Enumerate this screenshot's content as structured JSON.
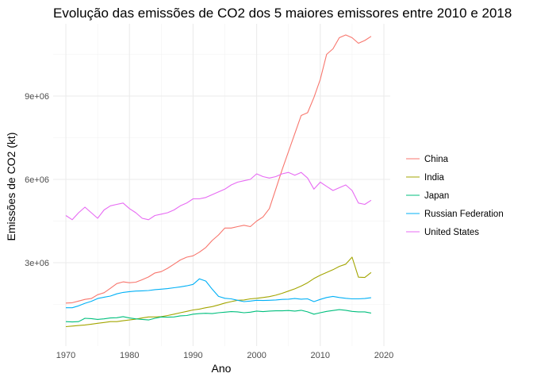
{
  "chart_data": {
    "type": "line",
    "title": "Evolução das emissões de CO2 dos 5 maiores emissores entre 2010 e 2018",
    "xlabel": "Ano",
    "ylabel": "Emissões de CO2 (kt)",
    "xlim": [
      1968,
      2021
    ],
    "ylim": [
      0,
      11600000
    ],
    "x_ticks": [
      1970,
      1980,
      1990,
      2000,
      2010,
      2020
    ],
    "y_ticks": [
      3000000,
      6000000,
      9000000
    ],
    "y_tick_labels": [
      "3e+06",
      "6e+06",
      "9e+06"
    ],
    "grid": true,
    "legend_position": "right",
    "x": [
      1970,
      1971,
      1972,
      1973,
      1974,
      1975,
      1976,
      1977,
      1978,
      1979,
      1980,
      1981,
      1982,
      1983,
      1984,
      1985,
      1986,
      1987,
      1988,
      1989,
      1990,
      1991,
      1992,
      1993,
      1994,
      1995,
      1996,
      1997,
      1998,
      1999,
      2000,
      2001,
      2002,
      2003,
      2004,
      2005,
      2006,
      2007,
      2008,
      2009,
      2010,
      2011,
      2012,
      2013,
      2014,
      2015,
      2016,
      2017,
      2018
    ],
    "series": [
      {
        "name": "China",
        "color": "#F8766D",
        "values": [
          1550000,
          1560000,
          1620000,
          1680000,
          1710000,
          1850000,
          1920000,
          2080000,
          2250000,
          2310000,
          2280000,
          2300000,
          2390000,
          2490000,
          2630000,
          2680000,
          2800000,
          2950000,
          3100000,
          3200000,
          3250000,
          3380000,
          3550000,
          3800000,
          4000000,
          4250000,
          4250000,
          4300000,
          4350000,
          4300000,
          4500000,
          4650000,
          4950000,
          5650000,
          6350000,
          7000000,
          7650000,
          8300000,
          8400000,
          8950000,
          9600000,
          10500000,
          10700000,
          11100000,
          11200000,
          11100000,
          10900000,
          11000000,
          11150000
        ]
      },
      {
        "name": "India",
        "color": "#A3A500",
        "values": [
          700000,
          720000,
          740000,
          760000,
          790000,
          820000,
          850000,
          880000,
          880000,
          910000,
          940000,
          970000,
          1010000,
          1050000,
          1050000,
          1060000,
          1100000,
          1150000,
          1200000,
          1250000,
          1300000,
          1330000,
          1380000,
          1420000,
          1480000,
          1550000,
          1600000,
          1650000,
          1660000,
          1700000,
          1720000,
          1750000,
          1780000,
          1830000,
          1900000,
          1980000,
          2060000,
          2160000,
          2280000,
          2430000,
          2550000,
          2650000,
          2750000,
          2870000,
          2950000,
          3200000,
          2480000,
          2470000,
          2650000
        ]
      },
      {
        "name": "Japan",
        "color": "#00BF7D",
        "values": [
          880000,
          870000,
          880000,
          1000000,
          990000,
          960000,
          980000,
          1010000,
          1020000,
          1060000,
          1010000,
          980000,
          960000,
          940000,
          1000000,
          1050000,
          1040000,
          1050000,
          1090000,
          1100000,
          1150000,
          1170000,
          1180000,
          1170000,
          1200000,
          1220000,
          1240000,
          1230000,
          1200000,
          1220000,
          1260000,
          1240000,
          1260000,
          1270000,
          1270000,
          1280000,
          1260000,
          1290000,
          1230000,
          1150000,
          1200000,
          1250000,
          1280000,
          1310000,
          1290000,
          1250000,
          1230000,
          1230000,
          1190000
        ]
      },
      {
        "name": "Russian Federation",
        "color": "#00B0F6",
        "values": [
          1380000,
          1380000,
          1450000,
          1540000,
          1610000,
          1710000,
          1760000,
          1800000,
          1880000,
          1930000,
          1960000,
          1980000,
          1990000,
          2000000,
          2030000,
          2050000,
          2070000,
          2100000,
          2130000,
          2170000,
          2220000,
          2420000,
          2340000,
          2050000,
          1790000,
          1720000,
          1700000,
          1650000,
          1600000,
          1620000,
          1650000,
          1640000,
          1650000,
          1660000,
          1680000,
          1690000,
          1710000,
          1690000,
          1700000,
          1600000,
          1680000,
          1750000,
          1790000,
          1750000,
          1720000,
          1700000,
          1700000,
          1710000,
          1740000
        ]
      },
      {
        "name": "United States",
        "color": "#E76BF3",
        "values": [
          4700000,
          4550000,
          4800000,
          5000000,
          4800000,
          4600000,
          4900000,
          5050000,
          5100000,
          5150000,
          4950000,
          4800000,
          4600000,
          4550000,
          4700000,
          4750000,
          4800000,
          4900000,
          5050000,
          5150000,
          5300000,
          5300000,
          5350000,
          5450000,
          5550000,
          5650000,
          5800000,
          5900000,
          5950000,
          6000000,
          6200000,
          6100000,
          6050000,
          6100000,
          6200000,
          6250000,
          6150000,
          6250000,
          6050000,
          5650000,
          5900000,
          5750000,
          5600000,
          5700000,
          5800000,
          5600000,
          5150000,
          5100000,
          5250000
        ]
      }
    ]
  }
}
